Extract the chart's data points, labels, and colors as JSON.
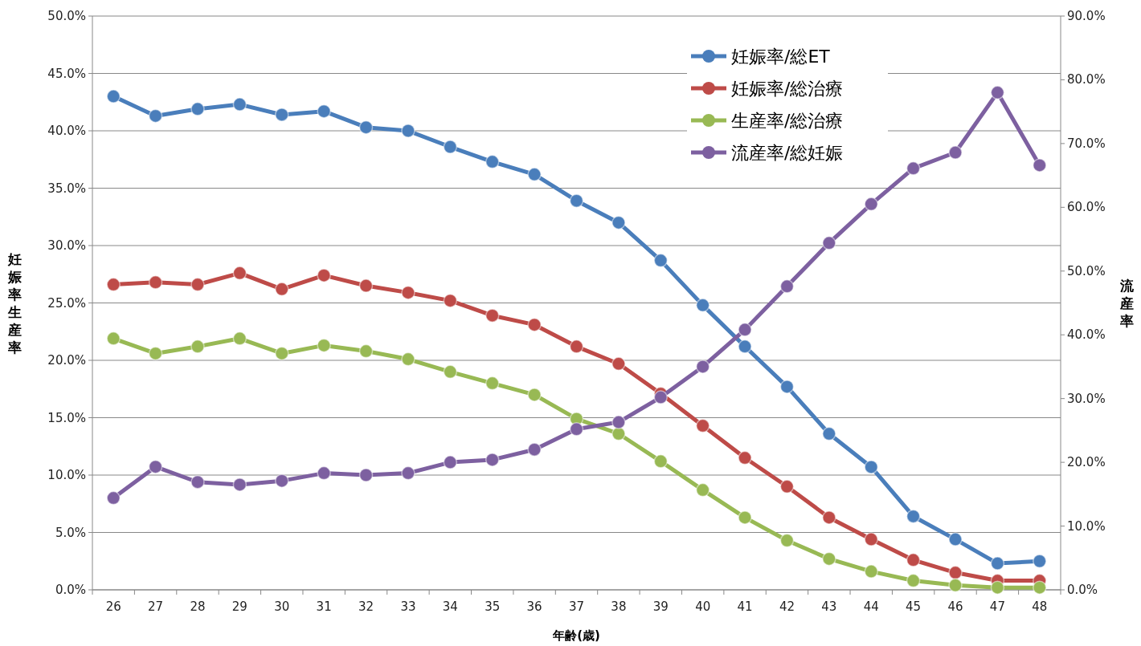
{
  "chart_data": {
    "type": "line",
    "xlabel": "年齢(歳)",
    "ylabel": "妊娠率生産率",
    "y2label": "流産率",
    "categories": [
      "26",
      "27",
      "28",
      "29",
      "30",
      "31",
      "32",
      "33",
      "34",
      "35",
      "36",
      "37",
      "38",
      "39",
      "40",
      "41",
      "42",
      "43",
      "44",
      "45",
      "46",
      "47",
      "48"
    ],
    "series": [
      {
        "name": "妊娠率/総ET",
        "color": "#4a7ebb",
        "values": [
          43.0,
          41.3,
          41.9,
          42.3,
          41.4,
          41.7,
          40.3,
          40.0,
          38.6,
          37.3,
          36.2,
          33.9,
          32.0,
          28.7,
          24.8,
          21.2,
          17.7,
          13.6,
          10.7,
          6.4,
          4.4,
          2.3,
          2.5
        ]
      },
      {
        "name": "妊娠率/総治療",
        "color": "#be4b48",
        "values": [
          26.6,
          26.8,
          26.6,
          27.6,
          26.2,
          27.4,
          26.5,
          25.9,
          25.2,
          23.9,
          23.1,
          21.2,
          19.7,
          17.1,
          14.3,
          11.5,
          9.0,
          6.3,
          4.4,
          2.6,
          1.5,
          0.8,
          0.8
        ]
      },
      {
        "name": "生産率/総治療",
        "color": "#98b954",
        "values": [
          21.9,
          20.6,
          21.2,
          21.9,
          20.6,
          21.3,
          20.8,
          20.1,
          19.0,
          18.0,
          17.0,
          14.9,
          13.6,
          11.2,
          8.7,
          6.3,
          4.3,
          2.7,
          1.6,
          0.8,
          0.4,
          0.2,
          0.2
        ]
      },
      {
        "name": "流産率/総妊娠",
        "color": "#7d60a0",
        "axis": "y2",
        "values": [
          14.4,
          19.3,
          16.9,
          16.5,
          17.1,
          18.3,
          18.0,
          18.3,
          20.0,
          20.4,
          22.0,
          25.2,
          26.3,
          30.2,
          35.0,
          40.8,
          47.6,
          54.4,
          60.5,
          66.1,
          68.6,
          78.0,
          66.6
        ]
      }
    ],
    "ylim": [
      0,
      50
    ],
    "yticks": [
      {
        "value": 0,
        "label": "0.0%"
      },
      {
        "value": 5,
        "label": "5.0%"
      },
      {
        "value": 10,
        "label": "10.0%"
      },
      {
        "value": 15,
        "label": "15.0%"
      },
      {
        "value": 20,
        "label": "20.0%"
      },
      {
        "value": 25,
        "label": "25.0%"
      },
      {
        "value": 30,
        "label": "30.0%"
      },
      {
        "value": 35,
        "label": "35.0%"
      },
      {
        "value": 40,
        "label": "40.0%"
      },
      {
        "value": 45,
        "label": "45.0%"
      },
      {
        "value": 50,
        "label": "50.0%"
      }
    ],
    "y2lim": [
      0,
      90
    ],
    "y2ticks": [
      {
        "value": 0,
        "label": "0.0%"
      },
      {
        "value": 10,
        "label": "10.0%"
      },
      {
        "value": 20,
        "label": "20.0%"
      },
      {
        "value": 30,
        "label": "30.0%"
      },
      {
        "value": 40,
        "label": "40.0%"
      },
      {
        "value": 50,
        "label": "50.0%"
      },
      {
        "value": 60,
        "label": "60.0%"
      },
      {
        "value": 70,
        "label": "70.0%"
      },
      {
        "value": 80,
        "label": "80.0%"
      },
      {
        "value": 90,
        "label": "90.0%"
      }
    ],
    "grid": "y",
    "legend": "top right",
    "marker": "circle",
    "line_style": "solid"
  }
}
